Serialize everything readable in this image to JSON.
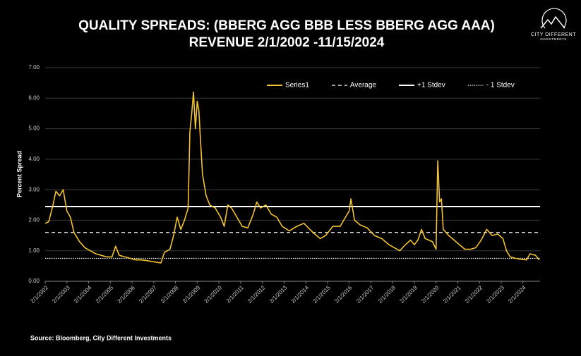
{
  "chart_data": {
    "type": "line",
    "title_lines": [
      "QUALITY SPREADS: (BBERG AGG BBB LESS BBERG AGG AAA)",
      "REVENUE 2/1/2002 -11/15/2024"
    ],
    "logo": [
      "CITY DIFFERENT",
      "INVESTMENTS"
    ],
    "y_label": "Percent Spread",
    "source": "Source: Bloomberg, City Different Investments",
    "xlim": [
      "2002-02-01",
      "2024-11-15"
    ],
    "ylim": [
      0,
      7
    ],
    "yticks": [
      {
        "value": 0,
        "label": "0.00"
      },
      {
        "value": 1,
        "label": "1.00"
      },
      {
        "value": 2,
        "label": "2.00"
      },
      {
        "value": 3,
        "label": "3.00"
      },
      {
        "value": 4,
        "label": "4.00"
      },
      {
        "value": 5,
        "label": "5.00"
      },
      {
        "value": 6,
        "label": "6.00"
      },
      {
        "value": 7,
        "label": "7.00"
      }
    ],
    "xticks": [
      {
        "value": "2002-02-01",
        "label": "2/1/2002"
      },
      {
        "value": "2003-02-01",
        "label": "2/1/2003"
      },
      {
        "value": "2004-02-01",
        "label": "2/1/2004"
      },
      {
        "value": "2005-02-01",
        "label": "2/1/2005"
      },
      {
        "value": "2006-02-01",
        "label": "2/1/2006"
      },
      {
        "value": "2007-02-01",
        "label": "2/1/2007"
      },
      {
        "value": "2008-02-01",
        "label": "2/1/2008"
      },
      {
        "value": "2009-02-01",
        "label": "2/1/2009"
      },
      {
        "value": "2010-02-01",
        "label": "2/1/2010"
      },
      {
        "value": "2011-02-01",
        "label": "2/1/2011"
      },
      {
        "value": "2012-02-01",
        "label": "2/1/2012"
      },
      {
        "value": "2013-02-01",
        "label": "2/1/2013"
      },
      {
        "value": "2014-02-01",
        "label": "2/1/2014"
      },
      {
        "value": "2015-02-01",
        "label": "2/1/2015"
      },
      {
        "value": "2016-02-01",
        "label": "2/1/2016"
      },
      {
        "value": "2017-02-01",
        "label": "2/1/2017"
      },
      {
        "value": "2018-02-01",
        "label": "2/1/2018"
      },
      {
        "value": "2019-02-01",
        "label": "2/1/2019"
      },
      {
        "value": "2020-02-01",
        "label": "2/1/2020"
      },
      {
        "value": "2021-02-01",
        "label": "2/1/2021"
      },
      {
        "value": "2022-02-01",
        "label": "2/1/2022"
      },
      {
        "value": "2023-02-01",
        "label": "2/1/2023"
      },
      {
        "value": "2024-02-01",
        "label": "2/1/2024"
      }
    ],
    "grid": true,
    "x": [
      "2002-02",
      "2002-04",
      "2002-06",
      "2002-08",
      "2002-10",
      "2002-12",
      "2003-02",
      "2003-04",
      "2003-06",
      "2003-09",
      "2003-12",
      "2004-03",
      "2004-06",
      "2004-09",
      "2004-12",
      "2005-03",
      "2005-05",
      "2005-07",
      "2005-10",
      "2006-01",
      "2006-04",
      "2006-07",
      "2006-10",
      "2007-01",
      "2007-04",
      "2007-06",
      "2007-08",
      "2007-11",
      "2008-01",
      "2008-03",
      "2008-05",
      "2008-07",
      "2008-09",
      "2008-10",
      "2008-11",
      "2008-12",
      "2009-01",
      "2009-02",
      "2009-03",
      "2009-04",
      "2009-05",
      "2009-07",
      "2009-09",
      "2009-12",
      "2010-03",
      "2010-05",
      "2010-07",
      "2010-09",
      "2010-12",
      "2011-03",
      "2011-06",
      "2011-09",
      "2011-11",
      "2012-01",
      "2012-04",
      "2012-07",
      "2012-10",
      "2013-01",
      "2013-05",
      "2013-09",
      "2014-01",
      "2014-06",
      "2014-10",
      "2015-01",
      "2015-05",
      "2015-09",
      "2015-12",
      "2016-02",
      "2016-03",
      "2016-05",
      "2016-08",
      "2016-12",
      "2017-04",
      "2017-08",
      "2017-12",
      "2018-03",
      "2018-06",
      "2018-09",
      "2018-12",
      "2019-02",
      "2019-04",
      "2019-06",
      "2019-08",
      "2019-12",
      "2020-02",
      "2020-03",
      "2020-04",
      "2020-05",
      "2020-06",
      "2020-09",
      "2020-12",
      "2021-03",
      "2021-06",
      "2021-09",
      "2021-12",
      "2022-03",
      "2022-06",
      "2022-09",
      "2022-12",
      "2023-03",
      "2023-05",
      "2023-07",
      "2023-10",
      "2024-01",
      "2024-04",
      "2024-06",
      "2024-09",
      "2024-11"
    ],
    "series": [
      {
        "name": "Series1",
        "color": "#f2c230",
        "values": [
          1.9,
          1.95,
          2.4,
          2.95,
          2.8,
          3.0,
          2.3,
          2.1,
          1.6,
          1.3,
          1.1,
          1.0,
          0.9,
          0.85,
          0.8,
          0.8,
          1.15,
          0.85,
          0.8,
          0.75,
          0.7,
          0.7,
          0.68,
          0.65,
          0.62,
          0.6,
          0.95,
          1.05,
          1.5,
          2.1,
          1.7,
          2.0,
          2.4,
          4.9,
          5.5,
          6.2,
          5.0,
          5.9,
          5.6,
          4.5,
          3.5,
          2.8,
          2.5,
          2.4,
          2.1,
          1.8,
          2.5,
          2.4,
          2.1,
          1.8,
          1.75,
          2.2,
          2.6,
          2.4,
          2.5,
          2.2,
          2.1,
          1.8,
          1.65,
          1.8,
          1.9,
          1.6,
          1.4,
          1.5,
          1.8,
          1.8,
          2.1,
          2.3,
          2.7,
          2.0,
          1.85,
          1.75,
          1.5,
          1.4,
          1.2,
          1.1,
          1.0,
          1.2,
          1.35,
          1.2,
          1.35,
          1.7,
          1.4,
          1.3,
          1.05,
          3.95,
          2.6,
          2.7,
          1.7,
          1.5,
          1.35,
          1.2,
          1.05,
          1.05,
          1.1,
          1.35,
          1.7,
          1.5,
          1.55,
          1.4,
          1.0,
          0.8,
          0.75,
          0.72,
          0.7,
          0.9,
          0.85,
          0.7
        ]
      }
    ],
    "reference_lines": [
      {
        "name": "Average",
        "value": 1.6,
        "style": "dashed",
        "color": "#ffffff"
      },
      {
        "name": "+1 Stdev",
        "value": 2.45,
        "style": "solid",
        "color": "#ffffff"
      },
      {
        "name": "- 1 Stdev",
        "value": 0.75,
        "style": "dotted",
        "color": "#ffffff"
      }
    ]
  }
}
